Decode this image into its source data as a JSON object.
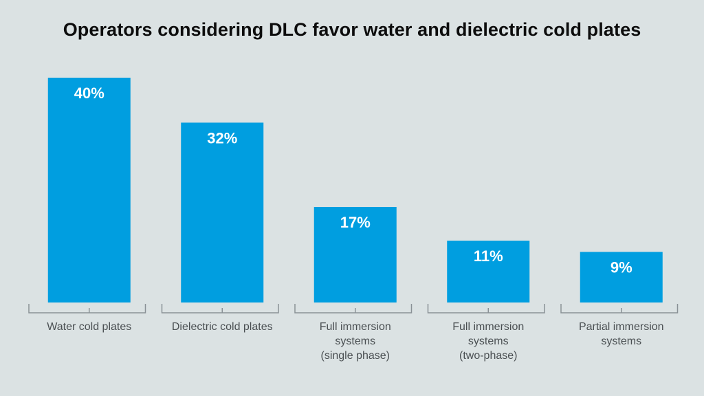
{
  "chart_data": {
    "type": "bar",
    "title": "Operators considering DLC favor water and dielectric cold plates",
    "categories": [
      [
        "Water cold plates"
      ],
      [
        "Dielectric cold plates"
      ],
      [
        "Full immersion",
        "systems",
        "(single phase)"
      ],
      [
        "Full immersion",
        "systems",
        "(two-phase)"
      ],
      [
        "Partial immersion",
        "systems"
      ]
    ],
    "values": [
      40,
      32,
      17,
      11,
      9
    ],
    "value_labels": [
      "40%",
      "32%",
      "17%",
      "11%",
      "9%"
    ],
    "ylim": [
      0,
      40
    ],
    "grid": false,
    "legend": "none"
  },
  "colors": {
    "background": "#dbe2e3",
    "bar": "#009ee0",
    "bracket": "#8a9196",
    "category_text": "#4a4f52",
    "title_text": "#0d0d0d",
    "value_text": "#ffffff"
  }
}
